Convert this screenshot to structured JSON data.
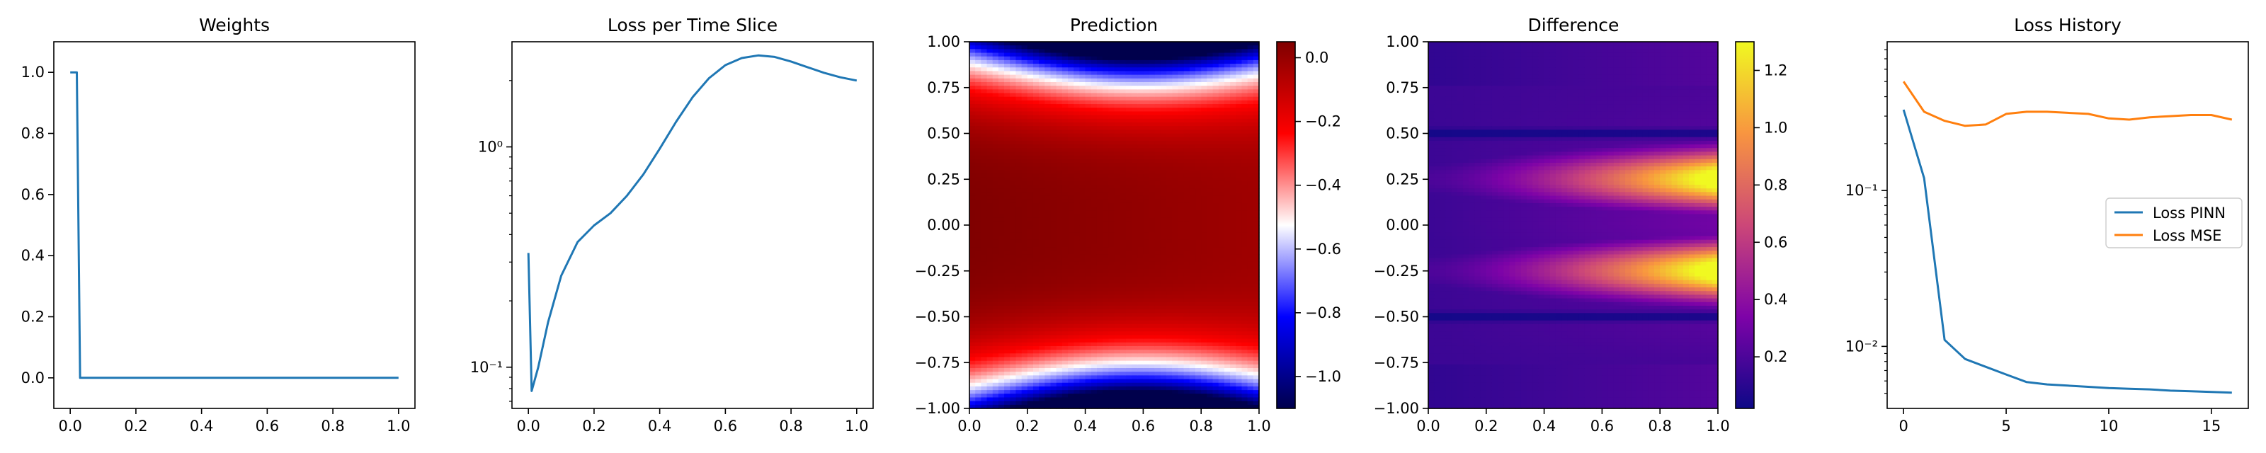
{
  "colors": {
    "pinn": "#1f77b4",
    "mse": "#ff7f0e",
    "axis": "#000000"
  },
  "chart_data": [
    {
      "type": "line",
      "title": "Weights",
      "xlim": [
        -0.05,
        1.05
      ],
      "ylim": [
        -0.1,
        1.1
      ],
      "xticks": [
        0,
        0.2,
        0.4,
        0.6,
        0.8,
        1.0
      ],
      "xtick_labels": [
        "0.0",
        "0.2",
        "0.4",
        "0.6",
        "0.8",
        "1.0"
      ],
      "yticks": [
        0,
        0.2,
        0.4,
        0.6,
        0.8,
        1.0
      ],
      "ytick_labels": [
        "0.0",
        "0.2",
        "0.4",
        "0.6",
        "0.8",
        "1.0"
      ],
      "series": [
        {
          "color": "#1f77b4",
          "x": [
            0.0,
            0.02,
            0.03,
            1.0
          ],
          "y": [
            1.0,
            1.0,
            0.0,
            0.0
          ]
        }
      ]
    },
    {
      "type": "line",
      "title": "Loss per Time Slice",
      "yscale": "log",
      "xlim": [
        -0.05,
        1.05
      ],
      "ylim": [
        0.065,
        3.0
      ],
      "xticks": [
        0,
        0.2,
        0.4,
        0.6,
        0.8,
        1.0
      ],
      "xtick_labels": [
        "0.0",
        "0.2",
        "0.4",
        "0.6",
        "0.8",
        "1.0"
      ],
      "yticks": [
        0.1,
        1.0
      ],
      "ytick_labels": [
        "10⁻¹",
        "10⁰"
      ],
      "series": [
        {
          "color": "#1f77b4",
          "x": [
            0.0,
            0.01,
            0.03,
            0.06,
            0.1,
            0.15,
            0.2,
            0.25,
            0.3,
            0.35,
            0.4,
            0.45,
            0.5,
            0.55,
            0.6,
            0.65,
            0.7,
            0.75,
            0.8,
            0.85,
            0.9,
            0.95,
            1.0
          ],
          "y": [
            0.33,
            0.078,
            0.1,
            0.16,
            0.26,
            0.37,
            0.44,
            0.5,
            0.6,
            0.75,
            0.98,
            1.3,
            1.68,
            2.05,
            2.35,
            2.53,
            2.6,
            2.56,
            2.44,
            2.3,
            2.17,
            2.07,
            2.0
          ]
        }
      ]
    },
    {
      "type": "heatmap",
      "title": "Prediction",
      "colormap": "seismic",
      "xlim": [
        0,
        1
      ],
      "ylim": [
        -1,
        1
      ],
      "xticks": [
        0,
        0.2,
        0.4,
        0.6,
        0.8,
        1.0
      ],
      "xtick_labels": [
        "0.0",
        "0.2",
        "0.4",
        "0.6",
        "0.8",
        "1.0"
      ],
      "yticks": [
        -1.0,
        -0.75,
        -0.5,
        -0.25,
        0,
        0.25,
        0.5,
        0.75,
        1.0
      ],
      "ytick_labels": [
        "−1.00",
        "−0.75",
        "−0.50",
        "−0.25",
        "0.00",
        "0.25",
        "0.50",
        "0.75",
        "1.00"
      ],
      "colorbar": {
        "range": [
          -1.1,
          0.05
        ],
        "ticks": [
          -1.0,
          -0.8,
          -0.6,
          -0.4,
          -0.2,
          0.0
        ],
        "tick_labels": [
          "−1.0",
          "−0.8",
          "−0.6",
          "−0.4",
          "−0.2",
          "0.0"
        ]
      }
    },
    {
      "type": "heatmap",
      "title": "Difference",
      "colormap": "plasma",
      "xlim": [
        0,
        1
      ],
      "ylim": [
        -1,
        1
      ],
      "xticks": [
        0,
        0.2,
        0.4,
        0.6,
        0.8,
        1.0
      ],
      "xtick_labels": [
        "0.0",
        "0.2",
        "0.4",
        "0.6",
        "0.8",
        "1.0"
      ],
      "yticks": [
        -1.0,
        -0.75,
        -0.5,
        -0.25,
        0,
        0.25,
        0.5,
        0.75,
        1.0
      ],
      "ytick_labels": [
        "−1.00",
        "−0.75",
        "−0.50",
        "−0.25",
        "0.00",
        "0.25",
        "0.50",
        "0.75",
        "1.00"
      ],
      "colorbar": {
        "range": [
          0.02,
          1.3
        ],
        "ticks": [
          0.2,
          0.4,
          0.6,
          0.8,
          1.0,
          1.2
        ],
        "tick_labels": [
          "0.2",
          "0.4",
          "0.6",
          "0.8",
          "1.0",
          "1.2"
        ]
      }
    },
    {
      "type": "line",
      "title": "Loss History",
      "yscale": "log",
      "xlim": [
        -0.8,
        16.8
      ],
      "ylim": [
        0.004,
        0.9
      ],
      "xticks": [
        0,
        5,
        10,
        15
      ],
      "xtick_labels": [
        "0",
        "5",
        "10",
        "15"
      ],
      "yticks": [
        0.01,
        0.1
      ],
      "ytick_labels": [
        "10⁻²",
        "10⁻¹"
      ],
      "legend": "center-right",
      "series": [
        {
          "name": "Loss PINN",
          "color": "#1f77b4",
          "x": [
            0,
            1,
            2,
            3,
            4,
            5,
            6,
            7,
            8,
            9,
            10,
            11,
            12,
            13,
            14,
            15,
            16
          ],
          "y": [
            0.33,
            0.12,
            0.011,
            0.0083,
            0.0074,
            0.0066,
            0.0059,
            0.0057,
            0.0056,
            0.0055,
            0.0054,
            0.00535,
            0.0053,
            0.0052,
            0.00515,
            0.0051,
            0.00505
          ]
        },
        {
          "name": "Loss MSE",
          "color": "#ff7f0e",
          "x": [
            0,
            1,
            2,
            3,
            4,
            5,
            6,
            7,
            8,
            9,
            10,
            11,
            12,
            13,
            14,
            15,
            16
          ],
          "y": [
            0.5,
            0.32,
            0.28,
            0.26,
            0.265,
            0.31,
            0.32,
            0.32,
            0.315,
            0.31,
            0.29,
            0.285,
            0.295,
            0.3,
            0.305,
            0.305,
            0.285
          ]
        }
      ]
    }
  ]
}
